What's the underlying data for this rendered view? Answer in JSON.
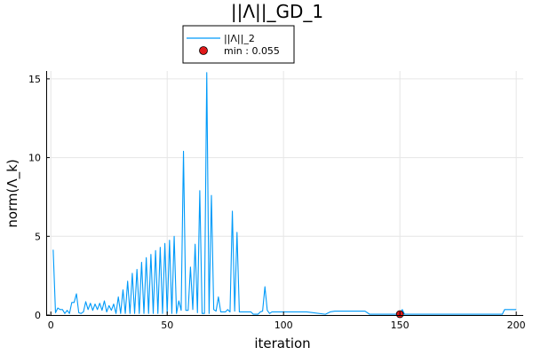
{
  "chart_data": {
    "type": "line",
    "title": "||Λ||_GD_1",
    "xlabel": "iteration",
    "ylabel": "norm(Λ_k)",
    "xlim": [
      -2,
      203
    ],
    "ylim": [
      0,
      15.5
    ],
    "xticks": [
      0,
      50,
      100,
      150,
      200
    ],
    "yticks": [
      0,
      5,
      10,
      15
    ],
    "grid": true,
    "legend_position": "top-center",
    "series": [
      {
        "name": "||Λ||_2",
        "kind": "line",
        "color": "#009af9",
        "x": [
          1,
          2,
          3,
          4,
          5,
          6,
          7,
          8,
          9,
          10,
          11,
          12,
          13,
          14,
          15,
          16,
          17,
          18,
          19,
          20,
          21,
          22,
          23,
          24,
          25,
          26,
          27,
          28,
          29,
          30,
          31,
          32,
          33,
          34,
          35,
          36,
          37,
          38,
          39,
          40,
          41,
          42,
          43,
          44,
          45,
          46,
          47,
          48,
          49,
          50,
          51,
          52,
          53,
          54,
          55,
          56,
          57,
          58,
          59,
          60,
          61,
          62,
          63,
          64,
          65,
          66,
          67,
          68,
          69,
          70,
          71,
          72,
          73,
          74,
          75,
          76,
          77,
          78,
          79,
          80,
          81,
          82,
          83,
          84,
          85,
          86,
          87,
          88,
          89,
          90,
          91,
          92,
          93,
          94,
          95,
          96,
          97,
          98,
          99,
          100,
          110,
          118,
          120,
          122,
          135,
          137,
          140,
          145,
          148,
          150,
          151,
          152,
          160,
          170,
          180,
          190,
          194,
          195,
          200
        ],
        "y": [
          4.15,
          0.15,
          0.45,
          0.35,
          0.35,
          0.1,
          0.3,
          0.1,
          0.8,
          0.8,
          1.35,
          0.15,
          0.1,
          0.2,
          0.85,
          0.35,
          0.75,
          0.3,
          0.7,
          0.35,
          0.75,
          0.3,
          0.9,
          0.2,
          0.6,
          0.3,
          0.7,
          0.1,
          1.15,
          0.1,
          1.6,
          0.1,
          2.15,
          0.1,
          2.65,
          0.1,
          2.9,
          0.1,
          3.35,
          0.1,
          3.65,
          0.1,
          3.85,
          0.1,
          4.1,
          0.1,
          4.3,
          0.1,
          4.55,
          0.1,
          4.75,
          0.1,
          5.0,
          0.1,
          0.9,
          0.3,
          10.4,
          0.3,
          0.3,
          3.05,
          0.35,
          4.5,
          0.15,
          7.9,
          0.1,
          0.1,
          15.4,
          0.1,
          7.6,
          0.35,
          0.25,
          1.15,
          0.2,
          0.2,
          0.2,
          0.35,
          0.2,
          6.6,
          0.25,
          5.25,
          0.2,
          0.2,
          0.2,
          0.2,
          0.2,
          0.2,
          0.05,
          0.05,
          0.05,
          0.2,
          0.25,
          1.8,
          0.3,
          0.1,
          0.2,
          0.2,
          0.2,
          0.2,
          0.2,
          0.2,
          0.2,
          0.05,
          0.2,
          0.25,
          0.25,
          0.05,
          0.05,
          0.05,
          0.05,
          0.05,
          0.35,
          0.05,
          0.05,
          0.05,
          0.05,
          0.05,
          0.05,
          0.35,
          0.35
        ]
      },
      {
        "name": "min : 0.055",
        "kind": "scatter",
        "color": "#e0191a",
        "x": [
          150
        ],
        "y": [
          0.055
        ]
      }
    ]
  }
}
